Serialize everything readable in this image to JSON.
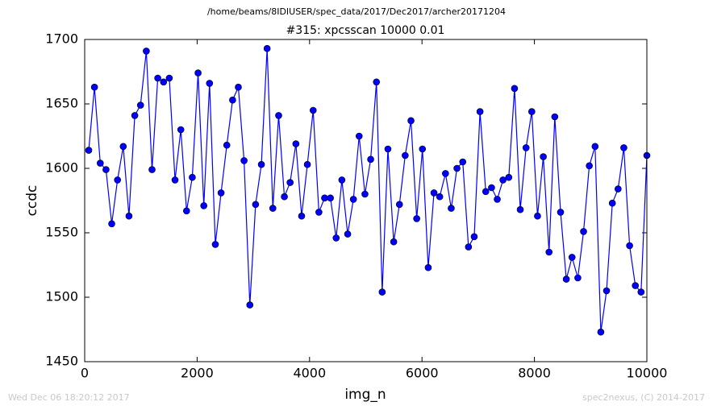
{
  "chart_data": {
    "type": "line",
    "suptitle": "/home/beams/8IDIUSER/spec_data/2017/Dec2017/archer20171204",
    "title": "#315: xpcsscan 10000 0.01",
    "xlabel": "img_n",
    "ylabel": "ccdc",
    "footer_left": "Wed Dec 06 18:20:12 2017",
    "footer_right": "spec2nexus, (C) 2014-2017",
    "xlim": [
      0,
      10000
    ],
    "xticks": [
      0,
      2000,
      4000,
      6000,
      8000,
      10000
    ],
    "ylim": [
      1450,
      1700
    ],
    "yticks": [
      1450,
      1500,
      1550,
      1600,
      1650,
      1700
    ],
    "x": [
      72,
      174,
      277,
      379,
      481,
      584,
      686,
      788,
      891,
      993,
      1096,
      1198,
      1300,
      1403,
      1505,
      1607,
      1710,
      1812,
      1914,
      2017,
      2119,
      2221,
      2324,
      2426,
      2528,
      2631,
      2733,
      2835,
      2938,
      3040,
      3143,
      3245,
      3347,
      3450,
      3552,
      3654,
      3757,
      3859,
      3961,
      4064,
      4166,
      4268,
      4371,
      4473,
      4575,
      4678,
      4780,
      4882,
      4985,
      5087,
      5190,
      5292,
      5394,
      5497,
      5599,
      5701,
      5804,
      5906,
      6008,
      6111,
      6213,
      6315,
      6418,
      6520,
      6622,
      6725,
      6827,
      6929,
      7032,
      7134,
      7237,
      7339,
      7441,
      7544,
      7646,
      7748,
      7851,
      7953,
      8055,
      8158,
      8260,
      8362,
      8465,
      8567,
      8669,
      8772,
      8874,
      8976,
      9079,
      9181,
      9283,
      9386,
      9488,
      9590,
      9693,
      9795,
      9897,
      10000
    ],
    "series": [
      {
        "color": "#0000ff",
        "values": [
          1614,
          1663,
          1604,
          1599,
          1557,
          1591,
          1617,
          1563,
          1641,
          1649,
          1691,
          1599,
          1670,
          1667,
          1670,
          1591,
          1630,
          1567,
          1593,
          1674,
          1571,
          1666,
          1541,
          1581,
          1618,
          1653,
          1663,
          1606,
          1494,
          1572,
          1603,
          1693,
          1569,
          1641,
          1578,
          1589,
          1619,
          1563,
          1603,
          1645,
          1566,
          1577,
          1577,
          1546,
          1591,
          1549,
          1576,
          1625,
          1580,
          1607,
          1667,
          1504,
          1615,
          1543,
          1572,
          1610,
          1637,
          1561,
          1615,
          1523,
          1581,
          1578,
          1596,
          1569,
          1600,
          1605,
          1539,
          1547,
          1644,
          1582,
          1585,
          1576,
          1591,
          1593,
          1662,
          1568,
          1616,
          1644,
          1563,
          1609,
          1535,
          1640,
          1566,
          1514,
          1531,
          1515,
          1551,
          1602,
          1617,
          1473,
          1505,
          1573,
          1584,
          1616,
          1540,
          1509,
          1504,
          1610
        ]
      }
    ]
  }
}
